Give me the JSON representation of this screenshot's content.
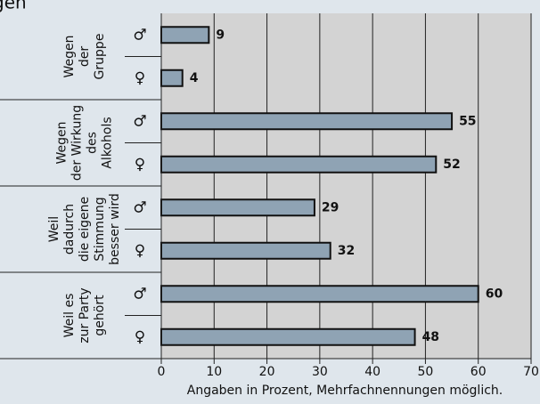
{
  "chart_data": {
    "type": "hbar-grouped",
    "title": "gen",
    "categories": [
      [
        "Wegen",
        "der",
        "Gruppe"
      ],
      [
        "Wegen",
        "der Wirkung",
        "des",
        "Alkohols"
      ],
      [
        "Weil",
        "dadurch",
        "die eigene",
        "Stimmung",
        "besser wird"
      ],
      [
        "Weil es",
        "zur Party",
        "gehört"
      ]
    ],
    "series": [
      {
        "name": "♂",
        "color": "#8fa3b4",
        "values": [
          9,
          55,
          29,
          60
        ]
      },
      {
        "name": "♀",
        "color": "#8fa3b4",
        "values": [
          4,
          52,
          32,
          48
        ]
      }
    ],
    "xlim": [
      0,
      70
    ],
    "xticks": [
      0,
      10,
      20,
      30,
      40,
      50,
      60,
      70
    ],
    "xlabel": "Angaben in Prozent, Mehrfachnennungen möglich.",
    "grid": true
  }
}
